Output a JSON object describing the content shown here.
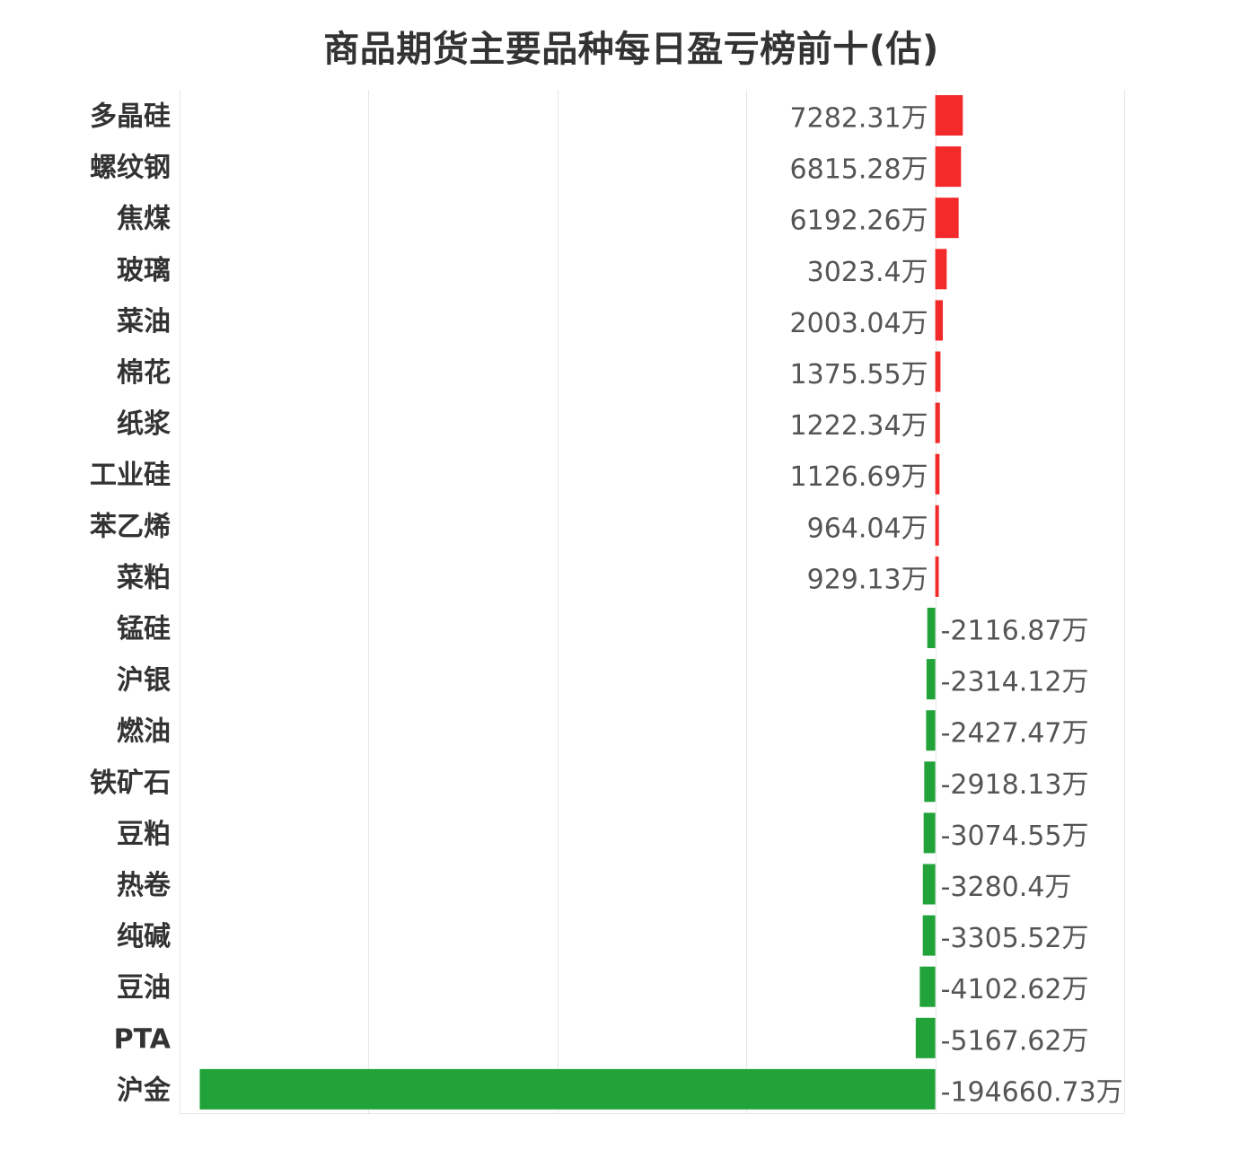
{
  "chart_data": {
    "type": "bar",
    "orientation": "horizontal",
    "title": "商品期货主要品种每日盈亏榜前十(估)",
    "unit": "万",
    "categories": [
      "多晶硅",
      "螺纹钢",
      "焦煤",
      "玻璃",
      "菜油",
      "棉花",
      "纸浆",
      "工业硅",
      "苯乙烯",
      "菜粕",
      "锰硅",
      "沪银",
      "燃油",
      "铁矿石",
      "豆粕",
      "热卷",
      "纯碱",
      "豆油",
      "PTA",
      "沪金"
    ],
    "values": [
      7282.31,
      6815.28,
      6192.26,
      3023.4,
      2003.04,
      1375.55,
      1222.34,
      1126.69,
      964.04,
      929.13,
      -2116.87,
      -2314.12,
      -2427.47,
      -2918.13,
      -3074.55,
      -3280.4,
      -3305.52,
      -4102.62,
      -5167.62,
      -194660.73
    ],
    "value_labels": [
      "7282.31万",
      "6815.28万",
      "6192.26万",
      "3023.4万",
      "2003.04万",
      "1375.55万",
      "1222.34万",
      "1126.69万",
      "964.04万",
      "929.13万",
      "-2116.87万",
      "-2314.12万",
      "-2427.47万",
      "-2918.13万",
      "-3074.55万",
      "-3280.4万",
      "-3305.52万",
      "-4102.62万",
      "-5167.62万",
      "-194660.73万"
    ],
    "xlim": [
      -200000,
      50000
    ],
    "grid": true,
    "legend": "none",
    "colors": {
      "positive": "#f32a2a",
      "negative": "#21a33a",
      "grid": "#e6e6e6"
    }
  }
}
